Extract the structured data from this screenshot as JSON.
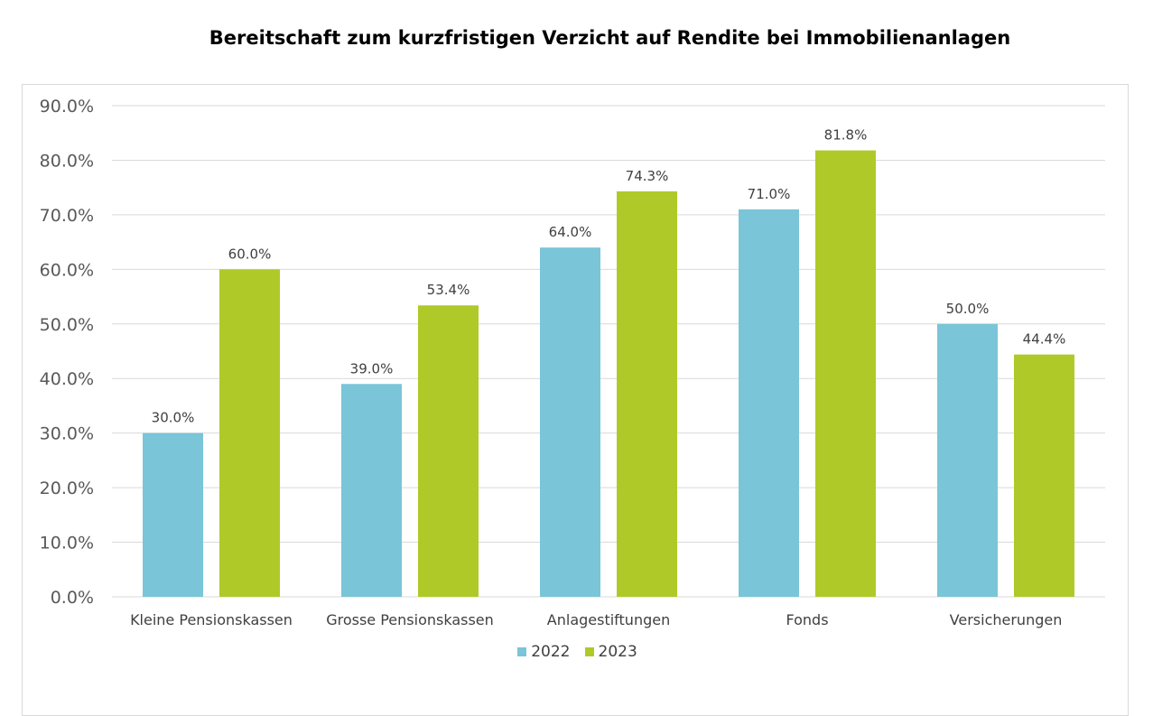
{
  "colors": {
    "series_2022": "#7ac5d8",
    "series_2023": "#afca28",
    "grid": "#d9d9d9",
    "axis_text": "#595959",
    "label_text": "#404040"
  },
  "chart_data": {
    "type": "bar",
    "title": "Bereitschaft zum kurzfristigen Verzicht auf Rendite bei Immobilienanlagen",
    "xlabel": "",
    "ylabel": "",
    "ylim": [
      0,
      90
    ],
    "yticks": [
      0,
      10,
      20,
      30,
      40,
      50,
      60,
      70,
      80,
      90
    ],
    "ytick_labels": [
      "0.0%",
      "10.0%",
      "20.0%",
      "30.0%",
      "40.0%",
      "50.0%",
      "60.0%",
      "70.0%",
      "80.0%",
      "90.0%"
    ],
    "grid": true,
    "legend_position": "bottom",
    "categories": [
      "Kleine Pensionskassen",
      "Grosse Pensionskassen",
      "Anlagestiftungen",
      "Fonds",
      "Versicherungen"
    ],
    "series": [
      {
        "name": "2022",
        "values": [
          30.0,
          39.0,
          64.0,
          71.0,
          50.0
        ],
        "labels": [
          "30.0%",
          "39.0%",
          "64.0%",
          "71.0%",
          "50.0%"
        ]
      },
      {
        "name": "2023",
        "values": [
          60.0,
          53.4,
          74.3,
          81.8,
          44.4
        ],
        "labels": [
          "60.0%",
          "53.4%",
          "74.3%",
          "81.8%",
          "44.4%"
        ]
      }
    ]
  }
}
